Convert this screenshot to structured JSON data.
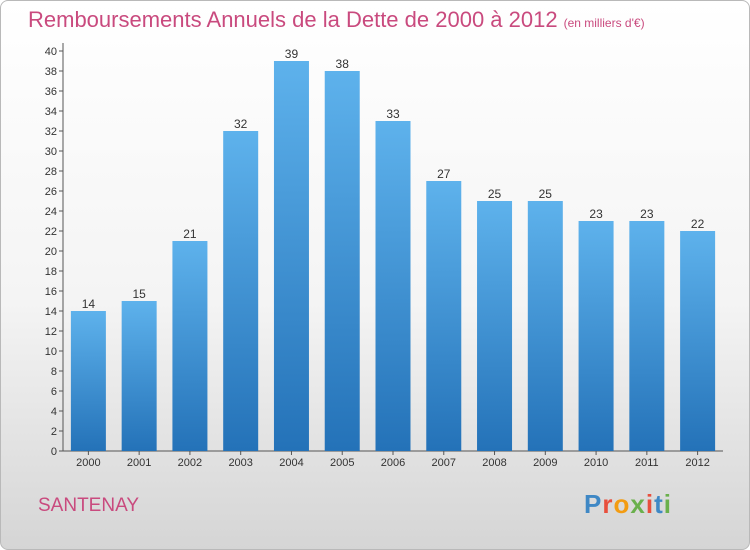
{
  "title": "Remboursements Annuels de la Dette de 2000 à 2012",
  "subtitle": "(en milliers d'€)",
  "city": "SANTENAY",
  "logo": {
    "text": "Proxiti",
    "letter_colors": [
      "#3f88c5",
      "#e84f3d",
      "#f39c12",
      "#6ab04c",
      "#e84f3d",
      "#3f88c5",
      "#6ab04c"
    ]
  },
  "colors": {
    "bar": "#3d93d8",
    "title": "#c94a7e"
  },
  "chart_data": {
    "type": "bar",
    "categories": [
      "2000",
      "2001",
      "2002",
      "2003",
      "2004",
      "2005",
      "2006",
      "2007",
      "2008",
      "2009",
      "2010",
      "2011",
      "2012"
    ],
    "values": [
      14,
      15,
      21,
      32,
      39,
      38,
      33,
      27,
      25,
      25,
      23,
      23,
      22
    ],
    "ylim": [
      0,
      40
    ],
    "ytick_step": 2,
    "grid": false,
    "data_labels": true
  }
}
